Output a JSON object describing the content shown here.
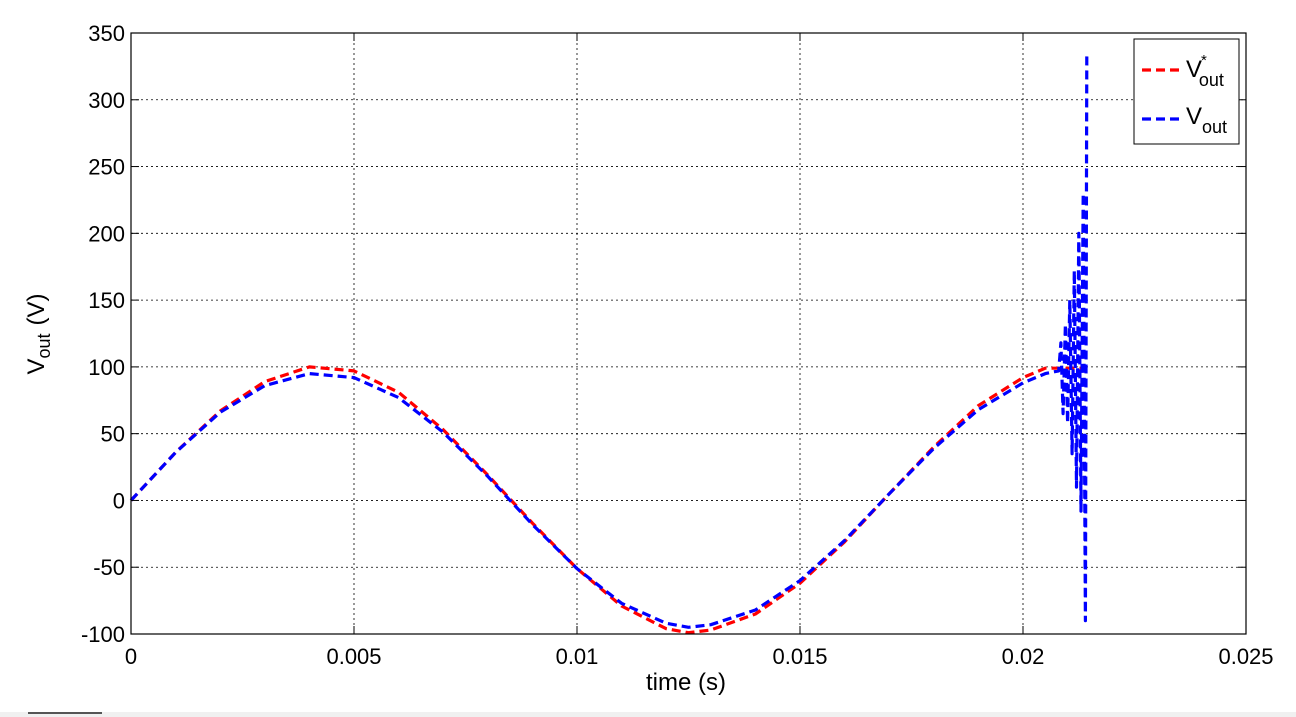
{
  "chart_data": {
    "type": "line",
    "title": "",
    "xlabel": "time (s)",
    "ylabel": "V",
    "ylabel_sub": "out",
    "ylabel_unit": "(V)",
    "xlim": [
      0,
      0.025
    ],
    "ylim": [
      -100,
      350
    ],
    "xticks": [
      0,
      0.005,
      0.01,
      0.015,
      0.02,
      0.025
    ],
    "xtick_labels": [
      "0",
      "0.005",
      "0.01",
      "0.015",
      "0.02",
      "0.025"
    ],
    "yticks": [
      -100,
      -50,
      0,
      50,
      100,
      150,
      200,
      250,
      300,
      350
    ],
    "ytick_labels": [
      "-100",
      "-50",
      "0",
      "50",
      "100",
      "150",
      "200",
      "250",
      "300",
      "350"
    ],
    "grid": true,
    "legend_position": "top-right",
    "series": [
      {
        "name": "V*out",
        "legend_main": "V",
        "legend_sup": "*",
        "legend_sub": "out",
        "color": "#ff0000",
        "line_style": "dashed",
        "x": [
          0,
          0.001,
          0.002,
          0.003,
          0.004,
          0.005,
          0.006,
          0.007,
          0.008,
          0.009,
          0.01,
          0.011,
          0.012,
          0.0125,
          0.013,
          0.014,
          0.015,
          0.016,
          0.017,
          0.018,
          0.019,
          0.02,
          0.0205,
          0.021,
          0.0213
        ],
        "y": [
          0,
          36,
          67,
          89,
          100,
          97,
          81,
          53,
          19,
          -17,
          -51,
          -79,
          -96,
          -99,
          -97,
          -85,
          -62,
          -31,
          5,
          40,
          71,
          92,
          99,
          99,
          99
        ]
      },
      {
        "name": "Vout",
        "legend_main": "V",
        "legend_sup": "",
        "legend_sub": "out",
        "color": "#0000ff",
        "line_style": "dashed",
        "x": [
          0,
          0.001,
          0.002,
          0.003,
          0.004,
          0.005,
          0.006,
          0.007,
          0.008,
          0.009,
          0.01,
          0.011,
          0.012,
          0.0125,
          0.013,
          0.014,
          0.015,
          0.016,
          0.017,
          0.018,
          0.019,
          0.02,
          0.0205,
          0.0208,
          0.02085,
          0.0209,
          0.02095,
          0.021,
          0.02105,
          0.0211,
          0.02115,
          0.0212,
          0.02125,
          0.0213,
          0.02135,
          0.0214,
          0.02143
        ],
        "y": [
          0,
          36,
          66,
          86,
          95,
          92,
          77,
          51,
          18,
          -18,
          -51,
          -77,
          -92,
          -95,
          -93,
          -82,
          -60,
          -30,
          5,
          39,
          68,
          88,
          95,
          97,
          118,
          65,
          132,
          58,
          150,
          35,
          172,
          10,
          200,
          -8,
          230,
          -90,
          335
        ]
      }
    ]
  }
}
